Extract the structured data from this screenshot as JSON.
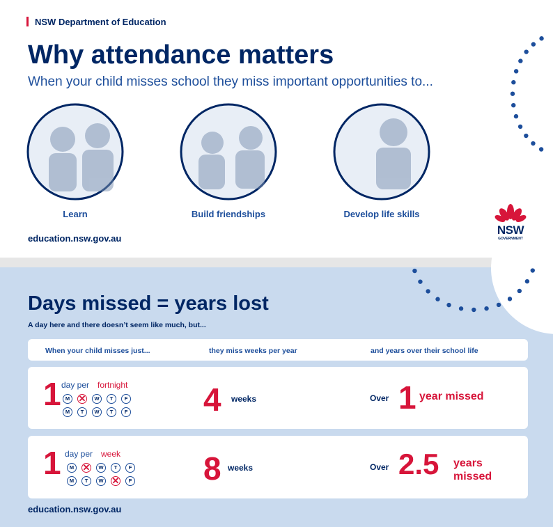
{
  "top_card": {
    "org": "NSW Department of Education",
    "title": "Why attendance matters",
    "subtitle": "When your child misses school they miss important opportunities to...",
    "items": [
      "Learn",
      "Build friendships",
      "Develop life skills"
    ],
    "url": "education.nsw.gov.au",
    "logo": {
      "name": "NSW",
      "sub": "GOVERNMENT"
    }
  },
  "bottom": {
    "title": "Days missed = years lost",
    "intro": "A day here and there doesn’t seem like much, but...",
    "headers": [
      "When your child misses just...",
      "they miss weeks per year",
      "and years over their school life"
    ],
    "rows": [
      {
        "count": "1",
        "unit": "day per ",
        "period": "fortnight",
        "days": [
          [
            "M",
            null,
            "W",
            "T",
            "F"
          ],
          [
            "M",
            "T",
            "W",
            "T",
            "F"
          ]
        ],
        "equals": "=",
        "weeks": "4",
        "weeks_label": "weeks",
        "equals2": "=",
        "over": "Over",
        "years": "1",
        "years_label": "year missed"
      },
      {
        "count": "1",
        "unit": "day per ",
        "period": "week",
        "days": [
          [
            "M",
            null,
            "W",
            "T",
            "F"
          ],
          [
            "M",
            "T",
            "W",
            null,
            "F"
          ]
        ],
        "equals": "=",
        "weeks": "8",
        "weeks_label": "weeks",
        "equals2": "=",
        "over": "Over",
        "years": "2.5",
        "years_label": "years missed"
      }
    ],
    "url": "education.nsw.gov.au"
  }
}
